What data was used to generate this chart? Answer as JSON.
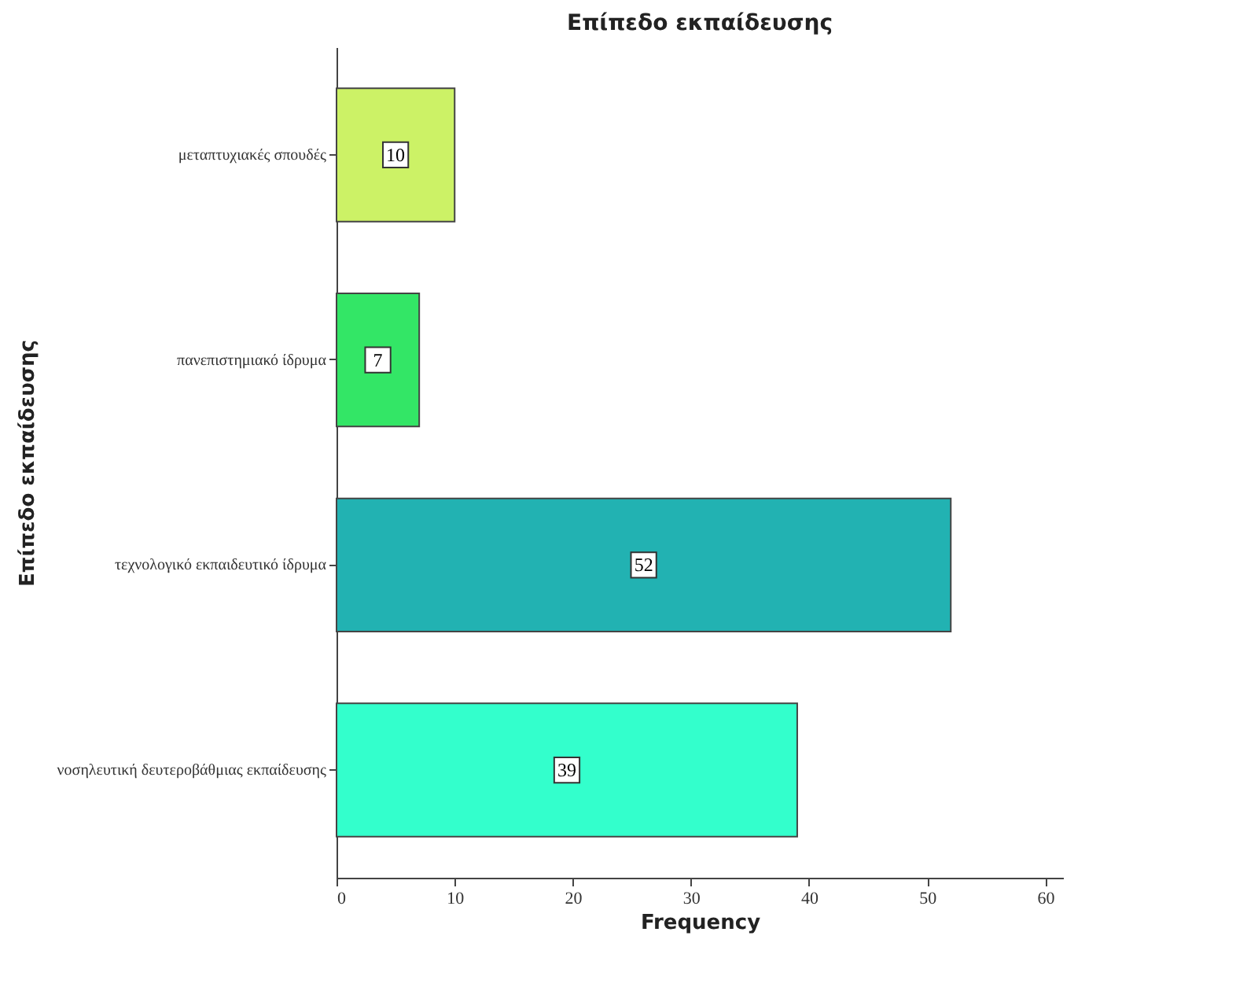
{
  "chart_data": {
    "type": "bar",
    "orientation": "horizontal",
    "title": "Επίπεδο εκπαίδευσης",
    "xlabel": "Frequency",
    "ylabel": "Επίπεδο εκπαίδευσης",
    "categories": [
      "μεταπτυχιακές σπουδές",
      "πανεπιστημιακό ίδρυμα",
      "τεχνολογικό εκπαιδευτικό ίδρυμα",
      "νοσηλευτική δευτεροβάθμιας εκπαίδευσης"
    ],
    "values": [
      10,
      7,
      52,
      39
    ],
    "colors": [
      "#ccf266",
      "#33e666",
      "#22b2b2",
      "#33ffcc"
    ],
    "xlim": [
      0,
      61.5
    ],
    "xticks": [
      0,
      10,
      20,
      30,
      40,
      50,
      60
    ],
    "data_labels": true
  }
}
